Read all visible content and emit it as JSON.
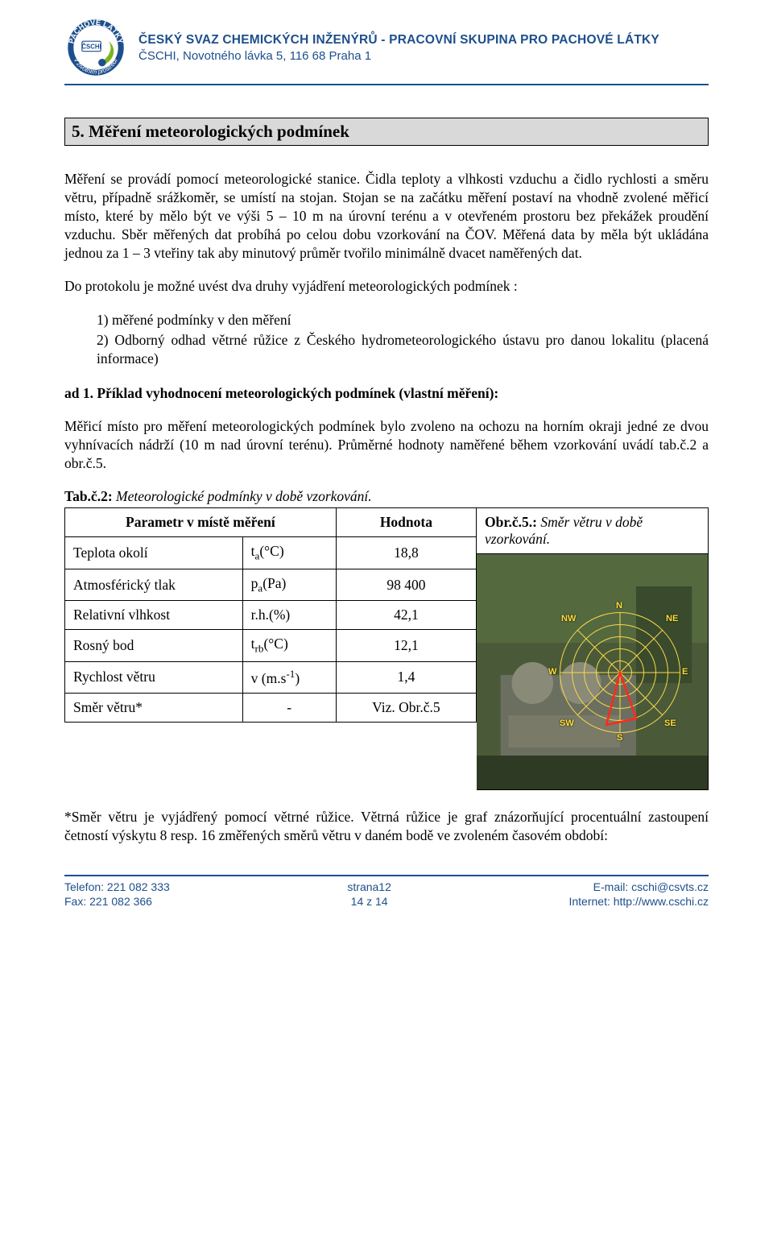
{
  "header": {
    "org_title": "ČESKÝ SVAZ CHEMICKÝCH INŽENÝRŮ - PRACOVNÍ SKUPINA PRO PACHOVÉ LÁTKY",
    "org_sub": "ČSCHI, Novotného lávka 5, 116 68 Praha 1",
    "logo_colors": {
      "ring": "#1d4f8c",
      "leaf": "#7ab51d",
      "text": "#1d4f8c"
    }
  },
  "section_title": "5. Měření meteorologických podmínek",
  "para1": "Měření se provádí pomocí meteorologické stanice. Čidla teploty a vlhkosti vzduchu  a čidlo rychlosti a směru větru, případně srážkoměr, se umístí na stojan. Stojan se na začátku měření postaví na vhodně zvolené měřicí místo, které by mělo být ve výši 5 – 10 m na úrovní terénu a v otevřeném prostoru bez překážek proudění vzduchu. Sběr měřených dat probíhá po celou dobu vzorkování na ČOV. Měřená data by měla být ukládána jednou za 1 – 3 vteřiny tak aby minutový průměr tvořilo minimálně dvacet naměřených dat.",
  "para2": "Do protokolu je možné uvést dva druhy vyjádření meteorologických podmínek :",
  "list_items": [
    "1)  měřené podmínky v den měření",
    "2)  Odborný odhad větrné růžice z Českého hydrometeorologického ústavu pro danou lokalitu (placená informace)"
  ],
  "subhead": "ad 1. Příklad vyhodnocení meteorologických podmínek (vlastní měření):",
  "para3": "Měřicí místo pro měření meteorologických podmínek bylo zvoleno na ochozu na horním okraji jedné ze dvou vyhnívacích nádrží (10 m nad úrovní terénu). Průměrné hodnoty naměřené během vzorkování uvádí tab.č.2 a obr.č.5.",
  "table_caption_prefix": "Tab.č.2:",
  "table_caption_rest": " Meteorologické podmínky v době vzorkování.",
  "table": {
    "head_param": "Parametr v místě měření",
    "head_val": "Hodnota",
    "rows": [
      {
        "name": "Teplota okolí",
        "sym_html": "t<span class='sub'>a</span>(°C)",
        "val": "18,8"
      },
      {
        "name": "Atmosférický tlak",
        "sym_html": "p<span class='sub'>a</span>(Pa)",
        "val": "98 400"
      },
      {
        "name": "Relativní vlhkost",
        "sym_html": "r.h.(%)",
        "val": "42,1"
      },
      {
        "name": "Rosný bod",
        "sym_html": "t<span class='sub'>rb</span>(°C)",
        "val": "12,1"
      },
      {
        "name": "Rychlost větru",
        "sym_html": "v (m.s<span class='sup'>-1</span>)",
        "val": "1,4"
      },
      {
        "name": "Směr větru*",
        "sym_html": "-",
        "val": "Viz. Obr.č.5"
      }
    ]
  },
  "fig_caption_prefix": "Obr.č.5.:",
  "fig_caption_rest": " Směr větru v době vzorkování.",
  "compass": {
    "directions": [
      "N",
      "NE",
      "E",
      "SE",
      "S",
      "SW",
      "W",
      "NW"
    ],
    "ring_color": "#f7d84a",
    "arrow_color": "#ff2a1a",
    "bg_sample": "#3b4a2e"
  },
  "para4": "*Směr větru je vyjádřený pomocí větrné růžice. Větrná růžice je graf znázorňující procentuální zastoupení četností výskytu 8 resp. 16 změřených směrů větru v daném bodě ve zvoleném časovém období:",
  "footer": {
    "left1": "Telefon: 221 082 333",
    "left2": "Fax: 221 082 366",
    "center1": "strana12",
    "center2": "14 z 14",
    "right1": "E-mail: cschi@csvts.cz",
    "right2": "Internet: http://www.cschi.cz"
  }
}
